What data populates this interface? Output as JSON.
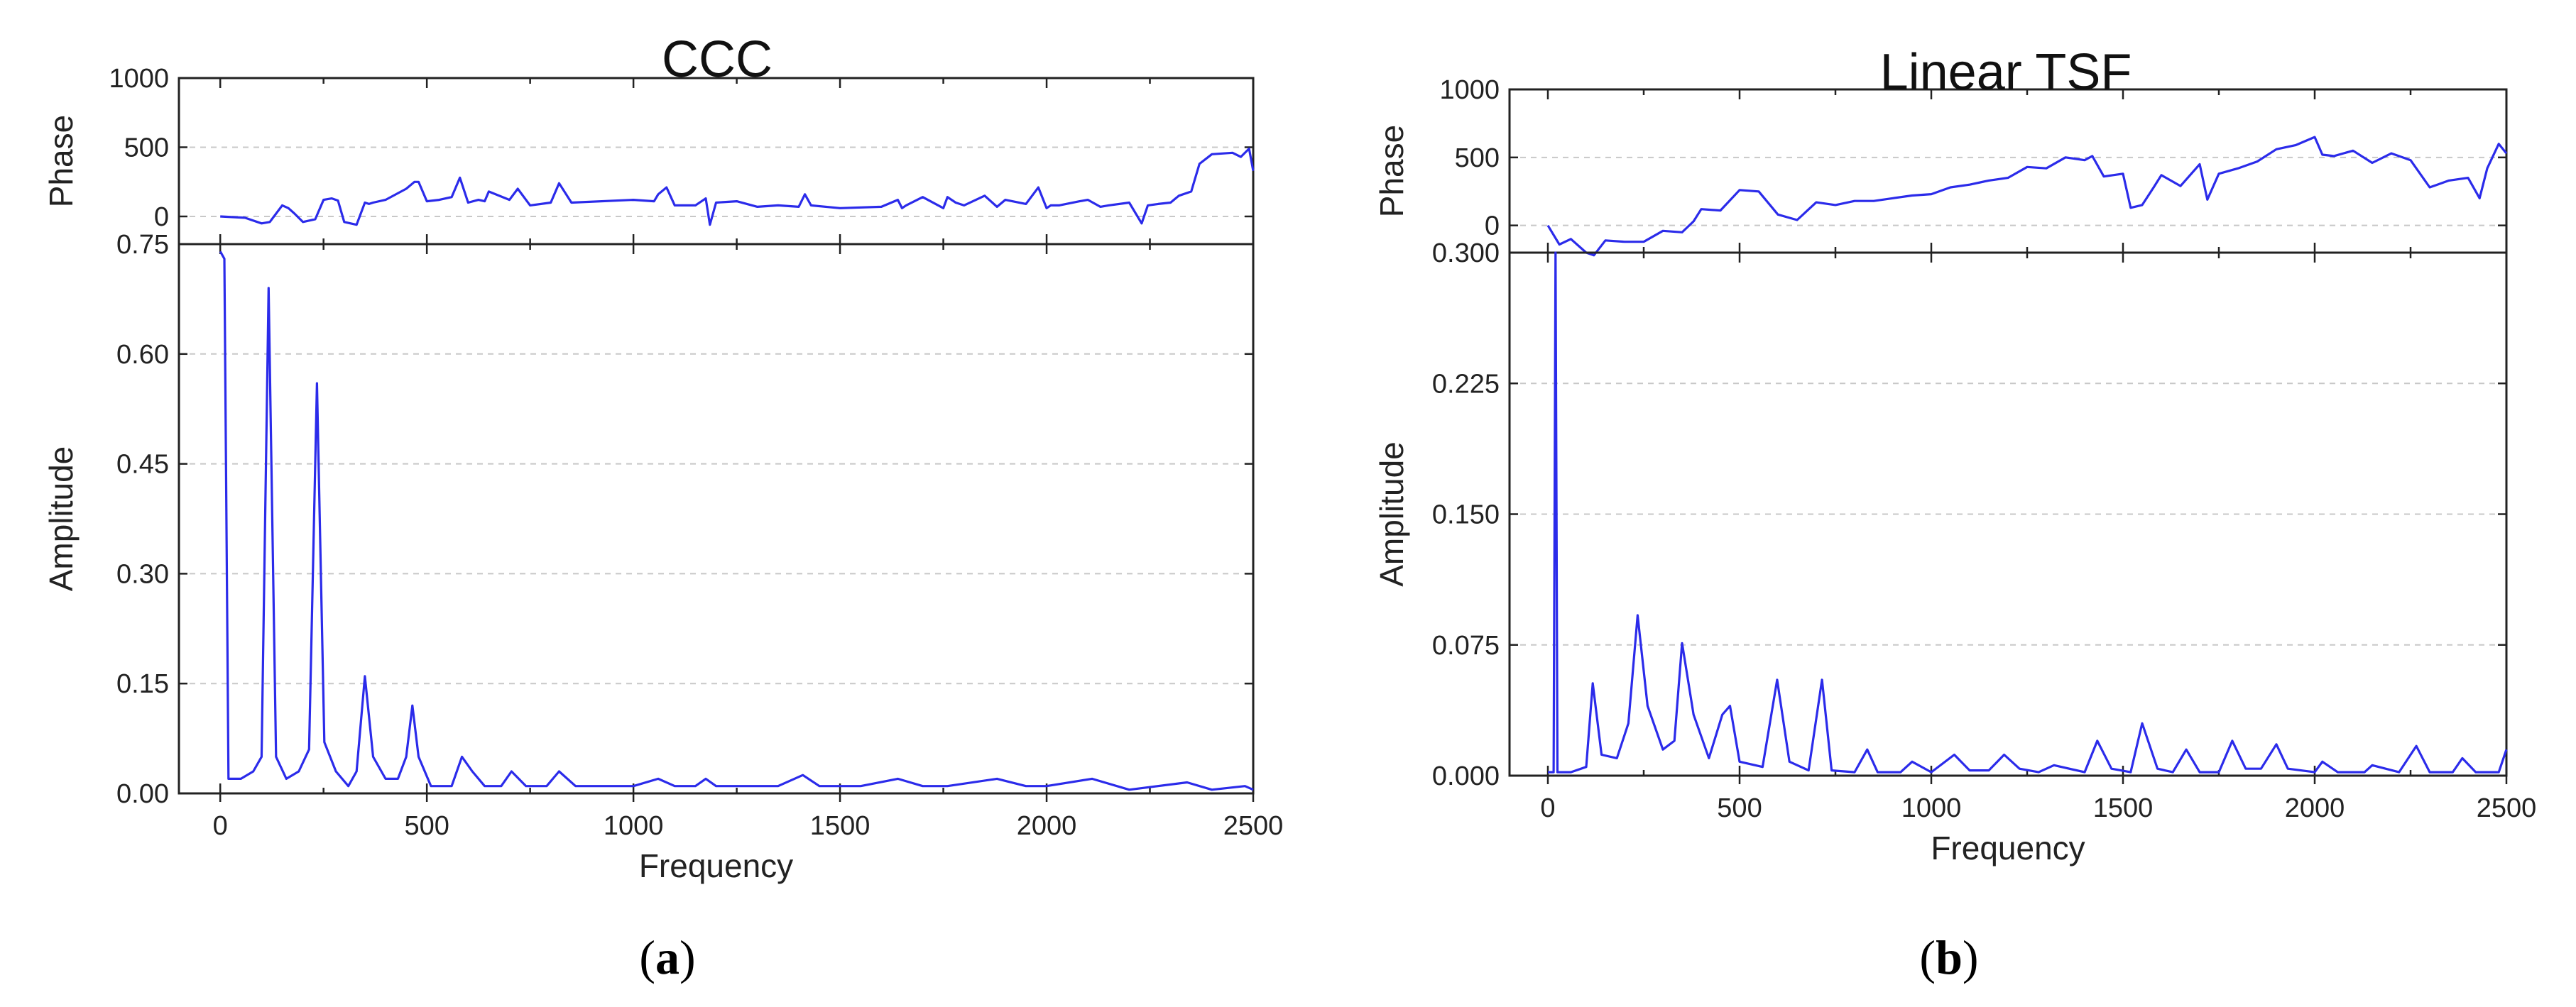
{
  "chart_data": [
    {
      "type": "line",
      "title": "CCC",
      "caption": {
        "open": "(",
        "letter": "a",
        "close": ")"
      },
      "xlabel": "Frequency",
      "xlim": [
        -100,
        2500
      ],
      "xticks": [
        0,
        500,
        1000,
        1500,
        2000,
        2500
      ],
      "phase": {
        "ylabel": "Phase",
        "ylim": [
          -200,
          1000
        ],
        "yticks": [
          0,
          500,
          1000
        ],
        "grid": true,
        "x": [
          0,
          60,
          100,
          120,
          150,
          165,
          180,
          200,
          230,
          250,
          270,
          285,
          300,
          330,
          350,
          360,
          370,
          400,
          450,
          470,
          480,
          500,
          530,
          560,
          580,
          600,
          625,
          640,
          650,
          700,
          720,
          750,
          800,
          820,
          850,
          1000,
          1050,
          1060,
          1080,
          1100,
          1150,
          1175,
          1185,
          1200,
          1250,
          1300,
          1350,
          1400,
          1415,
          1430,
          1500,
          1600,
          1640,
          1650,
          1660,
          1700,
          1750,
          1760,
          1780,
          1800,
          1850,
          1880,
          1900,
          1950,
          1980,
          2000,
          2010,
          2030,
          2080,
          2100,
          2130,
          2150,
          2200,
          2230,
          2245,
          2270,
          2300,
          2320,
          2350,
          2370,
          2400,
          2450,
          2470,
          2490,
          2500
        ],
        "y": [
          0,
          -10,
          -50,
          -40,
          80,
          60,
          20,
          -40,
          -20,
          120,
          130,
          115,
          -40,
          -60,
          100,
          90,
          100,
          120,
          200,
          250,
          250,
          110,
          120,
          140,
          280,
          100,
          120,
          110,
          180,
          120,
          200,
          80,
          100,
          240,
          100,
          120,
          110,
          160,
          210,
          80,
          80,
          130,
          -60,
          100,
          110,
          70,
          80,
          70,
          160,
          80,
          60,
          70,
          120,
          60,
          80,
          140,
          60,
          140,
          100,
          80,
          150,
          70,
          120,
          90,
          210,
          60,
          80,
          80,
          110,
          120,
          70,
          80,
          100,
          -50,
          80,
          90,
          100,
          150,
          180,
          380,
          450,
          460,
          430,
          490,
          330
        ]
      },
      "amplitude": {
        "ylabel": "Amplitude",
        "ylim": [
          0,
          0.75
        ],
        "yticks": [
          "0.00",
          "0.15",
          "0.30",
          "0.45",
          "0.60",
          "0.75"
        ],
        "grid": true,
        "x": [
          0,
          10,
          20,
          50,
          80,
          100,
          117,
          135,
          160,
          190,
          215,
          234,
          252,
          280,
          310,
          330,
          350,
          370,
          400,
          430,
          450,
          465,
          480,
          510,
          560,
          585,
          610,
          640,
          680,
          705,
          740,
          790,
          820,
          860,
          900,
          940,
          1000,
          1060,
          1100,
          1150,
          1175,
          1200,
          1260,
          1300,
          1350,
          1410,
          1450,
          1550,
          1640,
          1700,
          1760,
          1880,
          1950,
          2000,
          2110,
          2200,
          2340,
          2400,
          2480,
          2500
        ],
        "y": [
          0.74,
          0.73,
          0.02,
          0.02,
          0.03,
          0.05,
          0.69,
          0.05,
          0.02,
          0.03,
          0.06,
          0.56,
          0.07,
          0.03,
          0.01,
          0.03,
          0.16,
          0.05,
          0.02,
          0.02,
          0.05,
          0.12,
          0.05,
          0.01,
          0.01,
          0.05,
          0.03,
          0.01,
          0.01,
          0.03,
          0.01,
          0.01,
          0.03,
          0.01,
          0.01,
          0.01,
          0.01,
          0.02,
          0.01,
          0.01,
          0.02,
          0.01,
          0.01,
          0.01,
          0.01,
          0.025,
          0.01,
          0.01,
          0.02,
          0.01,
          0.01,
          0.02,
          0.01,
          0.01,
          0.02,
          0.005,
          0.015,
          0.005,
          0.01,
          0.005
        ]
      }
    },
    {
      "type": "line",
      "title": "Linear TSF",
      "caption": {
        "open": "(",
        "letter": "b",
        "close": ")"
      },
      "xlabel": "Frequency",
      "xlim": [
        -100,
        2500
      ],
      "xticks": [
        0,
        500,
        1000,
        1500,
        2000,
        2500
      ],
      "phase": {
        "ylabel": "Phase",
        "ylim": [
          -200,
          1000
        ],
        "yticks": [
          0,
          500,
          1000
        ],
        "grid": true,
        "x": [
          0,
          30,
          60,
          100,
          120,
          150,
          200,
          250,
          300,
          350,
          380,
          400,
          450,
          500,
          550,
          600,
          650,
          700,
          750,
          800,
          850,
          900,
          950,
          1000,
          1050,
          1100,
          1150,
          1200,
          1250,
          1300,
          1350,
          1400,
          1420,
          1450,
          1500,
          1520,
          1550,
          1580,
          1600,
          1650,
          1700,
          1720,
          1750,
          1800,
          1850,
          1900,
          1950,
          2000,
          2020,
          2050,
          2100,
          2150,
          2200,
          2250,
          2300,
          2350,
          2400,
          2430,
          2450,
          2480,
          2500
        ],
        "y": [
          0,
          -140,
          -100,
          -200,
          -220,
          -110,
          -120,
          -120,
          -40,
          -50,
          30,
          120,
          110,
          260,
          250,
          80,
          40,
          170,
          150,
          180,
          180,
          200,
          220,
          230,
          280,
          300,
          330,
          350,
          430,
          420,
          500,
          480,
          510,
          360,
          380,
          130,
          150,
          280,
          370,
          290,
          450,
          190,
          380,
          420,
          470,
          560,
          590,
          650,
          520,
          510,
          550,
          460,
          530,
          480,
          280,
          330,
          350,
          200,
          420,
          600,
          530
        ]
      },
      "amplitude": {
        "ylabel": "Amplitude",
        "ylim": [
          0,
          0.3
        ],
        "yticks": [
          "0.000",
          "0.075",
          "0.150",
          "0.225",
          "0.300"
        ],
        "grid": true,
        "x": [
          0,
          15,
          20,
          25,
          60,
          100,
          117,
          140,
          180,
          210,
          234,
          260,
          300,
          330,
          350,
          380,
          420,
          455,
          475,
          500,
          560,
          598,
          630,
          680,
          715,
          740,
          800,
          833,
          860,
          920,
          950,
          1000,
          1060,
          1100,
          1150,
          1190,
          1230,
          1280,
          1320,
          1400,
          1433,
          1470,
          1520,
          1550,
          1590,
          1630,
          1665,
          1700,
          1750,
          1785,
          1820,
          1860,
          1900,
          1930,
          2000,
          2020,
          2060,
          2130,
          2150,
          2220,
          2265,
          2300,
          2360,
          2385,
          2420,
          2480,
          2500
        ],
        "y": [
          0.002,
          0.002,
          0.3,
          0.002,
          0.002,
          0.005,
          0.053,
          0.012,
          0.01,
          0.03,
          0.092,
          0.04,
          0.015,
          0.02,
          0.076,
          0.035,
          0.01,
          0.035,
          0.04,
          0.008,
          0.005,
          0.055,
          0.008,
          0.003,
          0.055,
          0.003,
          0.002,
          0.015,
          0.002,
          0.002,
          0.008,
          0.002,
          0.012,
          0.003,
          0.003,
          0.012,
          0.004,
          0.002,
          0.006,
          0.002,
          0.02,
          0.004,
          0.002,
          0.03,
          0.004,
          0.002,
          0.015,
          0.002,
          0.002,
          0.02,
          0.004,
          0.004,
          0.018,
          0.004,
          0.002,
          0.008,
          0.002,
          0.002,
          0.006,
          0.002,
          0.017,
          0.002,
          0.002,
          0.01,
          0.002,
          0.002,
          0.015
        ]
      }
    }
  ]
}
